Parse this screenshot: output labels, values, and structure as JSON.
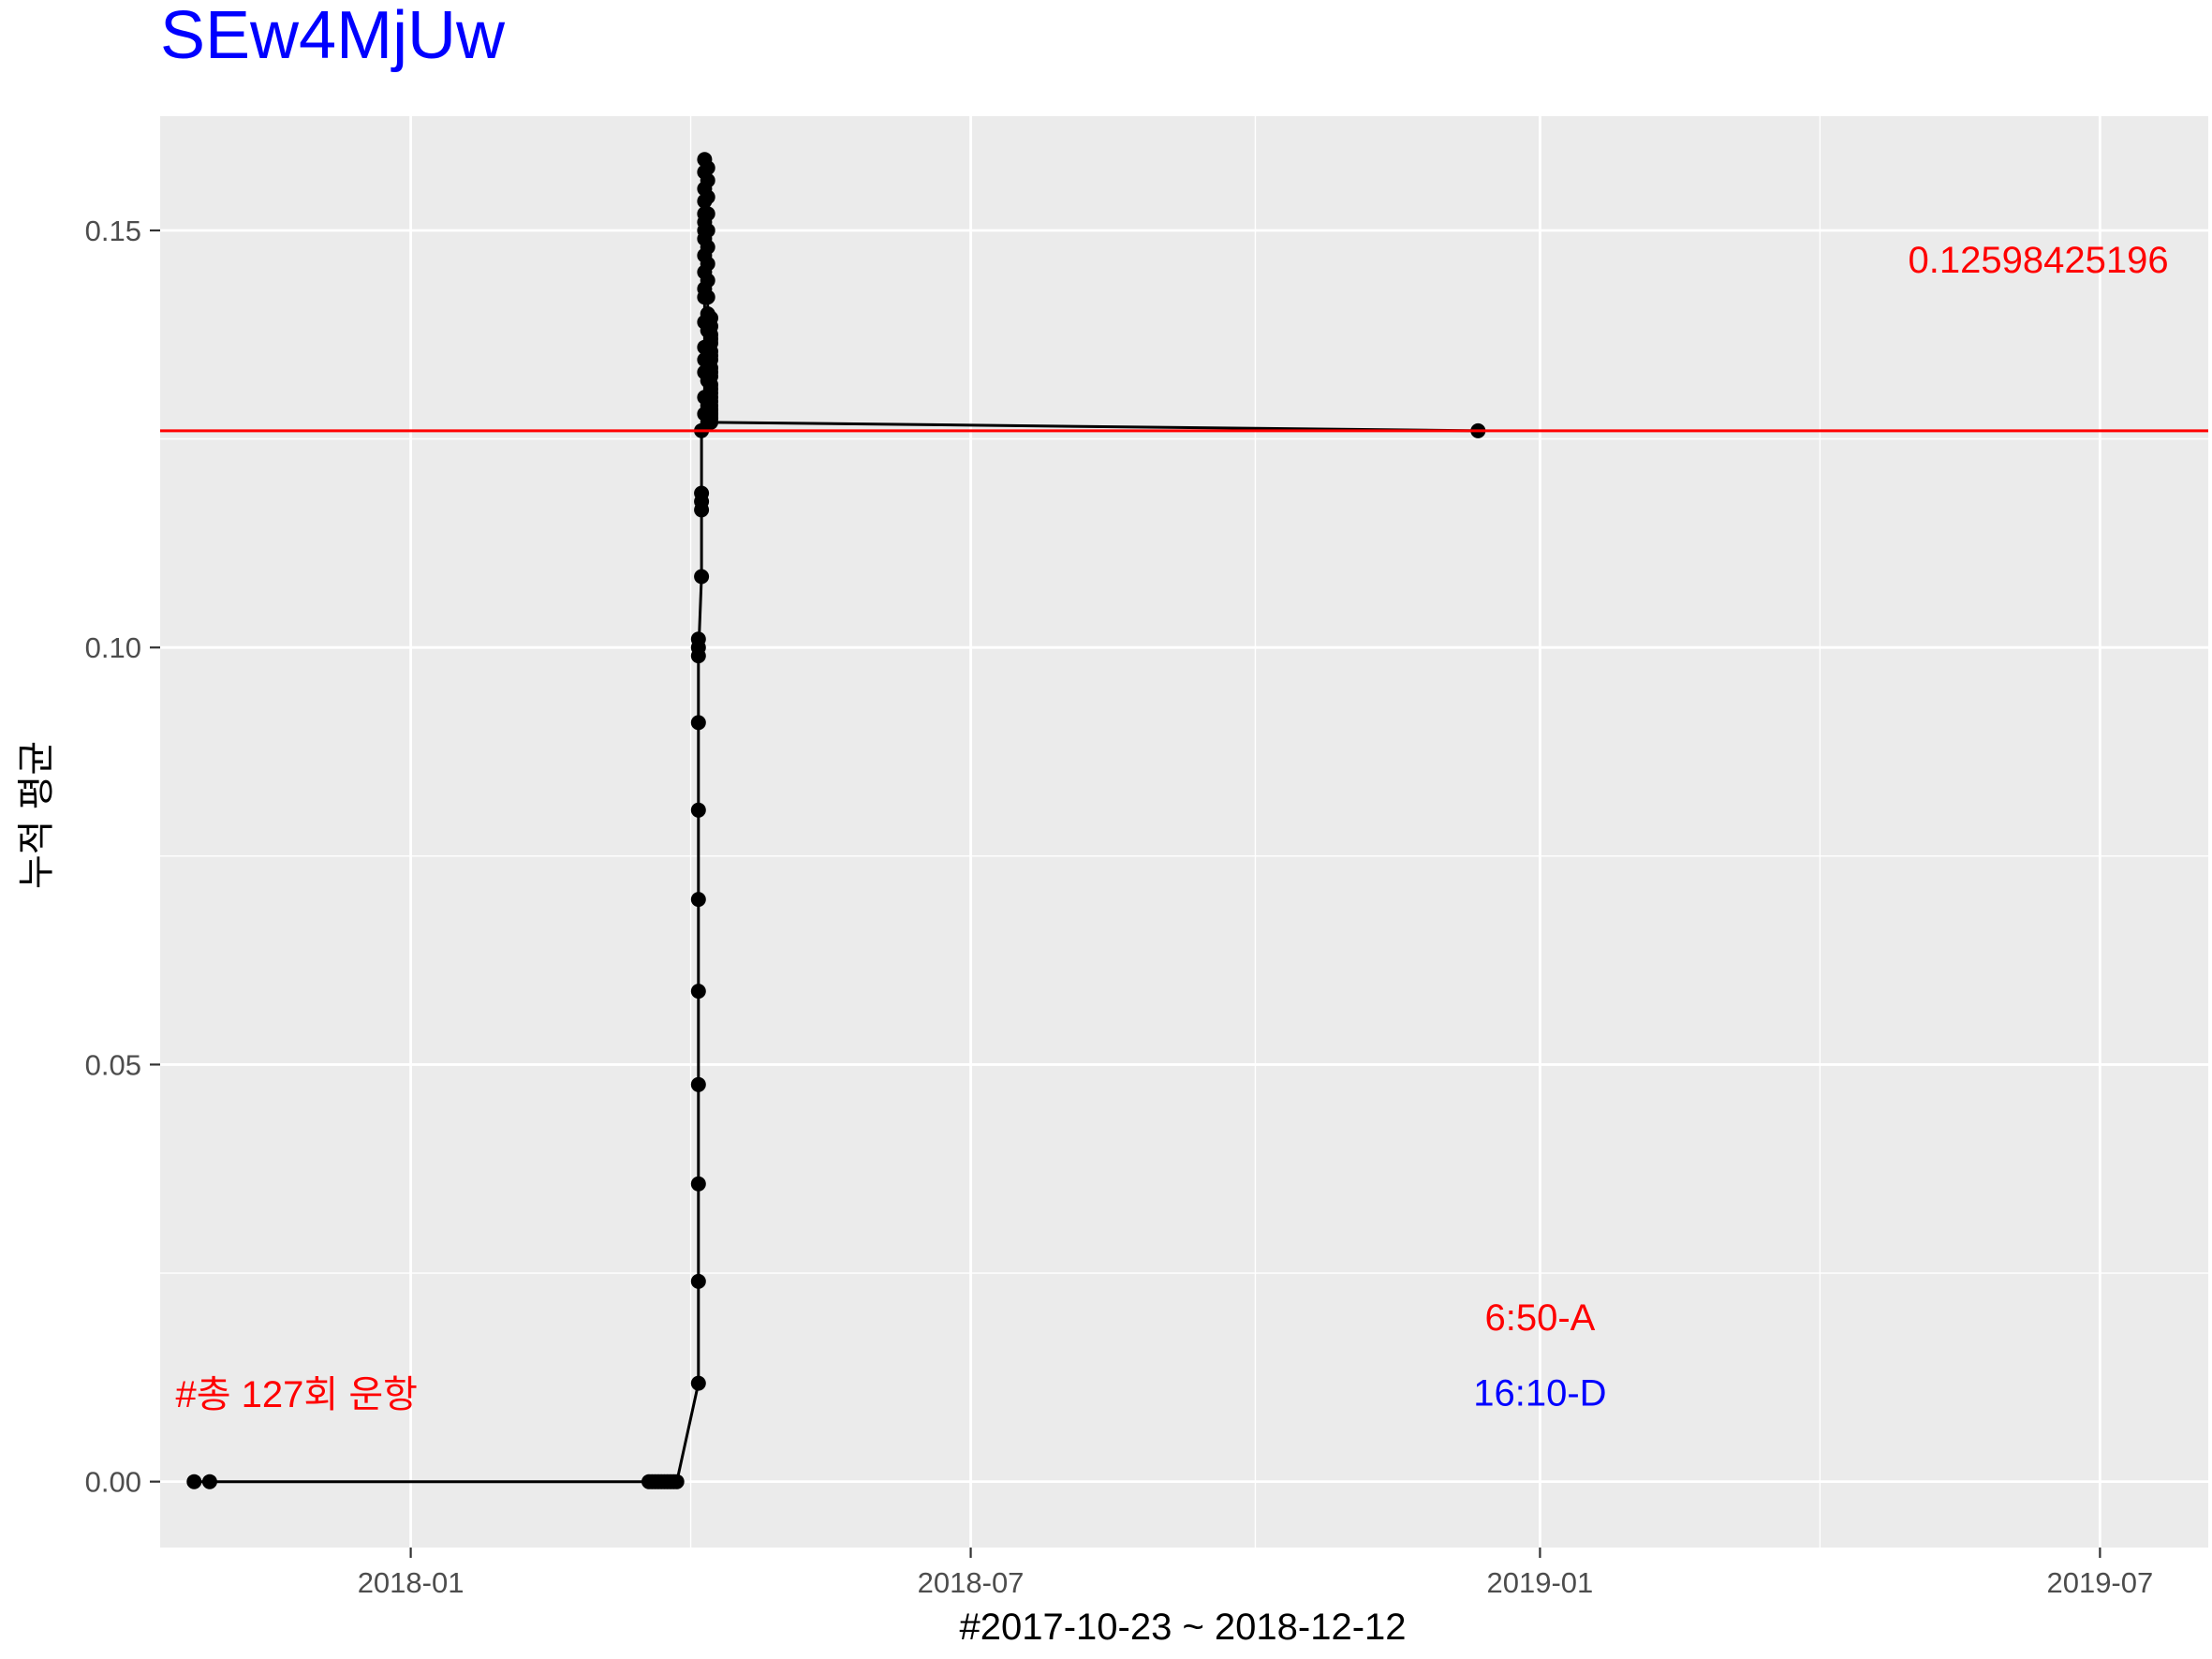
{
  "chart_data": {
    "type": "line",
    "title": "SEw4MjUw",
    "xlabel": "#2017-10-23 ~ 2018-12-12",
    "ylabel": "누적 평균",
    "x_type": "date",
    "xlim": [
      "2017-10-12",
      "2019-08-05"
    ],
    "ylim": [
      -0.0079,
      0.1637
    ],
    "x_ticks": [
      "2018-01-01",
      "2018-07-01",
      "2019-01-01",
      "2019-07-01"
    ],
    "x_tick_labels": [
      "2018-01",
      "2018-07",
      "2019-01",
      "2019-07"
    ],
    "y_ticks": [
      0.0,
      0.05,
      0.1,
      0.15
    ],
    "y_tick_labels": [
      "0.00",
      "0.05",
      "0.10",
      "0.15"
    ],
    "grid": true,
    "series": [
      {
        "x": [
          "2017-10-23",
          "2017-10-28",
          "2018-03-19",
          "2018-03-20",
          "2018-03-21",
          "2018-03-22",
          "2018-03-23",
          "2018-03-24",
          "2018-03-25",
          "2018-03-26",
          "2018-03-27",
          "2018-03-28",
          "2018-04-04",
          "2018-04-04",
          "2018-04-04",
          "2018-04-04",
          "2018-04-04",
          "2018-04-04",
          "2018-04-04",
          "2018-04-04",
          "2018-04-04",
          "2018-04-04",
          "2018-04-04",
          "2018-04-05",
          "2018-04-05",
          "2018-04-05",
          "2018-04-05",
          "2018-04-05",
          "2018-04-06",
          "2018-04-06",
          "2018-04-06",
          "2018-04-06",
          "2018-04-06",
          "2018-04-06",
          "2018-04-06",
          "2018-04-06",
          "2018-04-06",
          "2018-04-06",
          "2018-04-06",
          "2018-04-06",
          "2018-04-06",
          "2018-04-06",
          "2018-04-06",
          "2018-04-06",
          "2018-04-06",
          "2018-04-06",
          "2018-04-07",
          "2018-04-07",
          "2018-04-07",
          "2018-04-07",
          "2018-04-07",
          "2018-04-07",
          "2018-04-07",
          "2018-04-07",
          "2018-04-07",
          "2018-04-07",
          "2018-04-07",
          "2018-04-07",
          "2018-04-07",
          "2018-04-07",
          "2018-04-07",
          "2018-04-07",
          "2018-04-07",
          "2018-04-07",
          "2018-04-08",
          "2018-04-08",
          "2018-04-08",
          "2018-04-08",
          "2018-04-08",
          "2018-04-08",
          "2018-04-08",
          "2018-04-08",
          "2018-04-08",
          "2018-04-08",
          "2018-04-08",
          "2018-04-08",
          "2018-04-08",
          "2018-04-08",
          "2018-04-08",
          "2018-04-08",
          "2018-04-08",
          "2018-04-08",
          "2018-04-08",
          "2018-04-08",
          "2018-04-08",
          "2018-04-08",
          "2018-04-08",
          "2018-04-08",
          "2018-12-12"
        ],
        "y": [
          0.0,
          0.0,
          0.0,
          0.0,
          0.0,
          0.0,
          0.0,
          0.0,
          0.0,
          0.0,
          0.0,
          0.0,
          0.0118,
          0.024,
          0.0357,
          0.0476,
          0.0588,
          0.0698,
          0.0805,
          0.091,
          0.1,
          0.101,
          0.099,
          0.1085,
          0.1165,
          0.1175,
          0.1185,
          0.126,
          0.128,
          0.13,
          0.133,
          0.1345,
          0.136,
          0.139,
          0.142,
          0.143,
          0.145,
          0.147,
          0.149,
          0.15,
          0.151,
          0.152,
          0.1535,
          0.155,
          0.157,
          0.1585,
          0.1575,
          0.156,
          0.154,
          0.152,
          0.15,
          0.148,
          0.146,
          0.144,
          0.142,
          0.14,
          0.138,
          0.136,
          0.134,
          0.132,
          0.13,
          0.129,
          0.128,
          0.127,
          0.1395,
          0.1385,
          0.1375,
          0.1365,
          0.1355,
          0.1345,
          0.1335,
          0.1325,
          0.1315,
          0.1305,
          0.1295,
          0.1285,
          0.128,
          0.1275,
          0.137,
          0.135,
          0.133,
          0.131,
          0.13,
          0.129,
          0.1285,
          0.128,
          0.1275,
          0.127,
          0.12598
        ],
        "color": "#000000"
      }
    ],
    "hline": {
      "y": 0.12598425196,
      "color": "#ff0000"
    },
    "annotations": [
      {
        "text": "0.12598425196",
        "x": "2019-04-30",
        "y": 0.1465,
        "color": "#ff0000",
        "anchor": "start"
      },
      {
        "text": "#총 127회 운항",
        "x": "2017-10-17",
        "y": 0.0105,
        "color": "#ff0000",
        "anchor": "start"
      },
      {
        "text": "6:50-A",
        "x": "2019-01-01",
        "y": 0.0197,
        "color": "#ff0000",
        "anchor": "middle"
      },
      {
        "text": "16:10-D",
        "x": "2019-01-01",
        "y": 0.0107,
        "color": "#0000ff",
        "anchor": "middle"
      }
    ],
    "colors": {
      "title": "#0000ff",
      "panel_background": "#ebebeb",
      "gridline": "#ffffff",
      "tick_text": "#4d4d4d"
    }
  }
}
